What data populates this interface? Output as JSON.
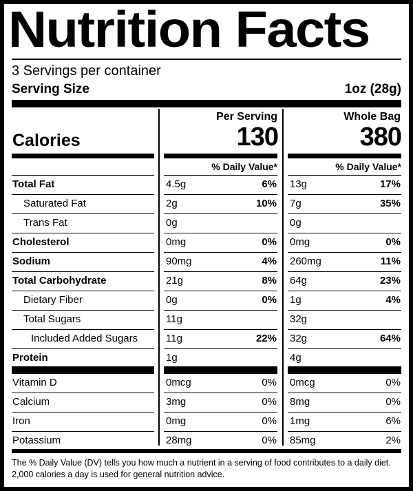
{
  "title": "Nutrition Facts",
  "servings_per_container": "3 Servings per container",
  "serving_size": {
    "label": "Serving Size",
    "value": "1oz (28g)"
  },
  "calories": {
    "label": "Calories",
    "per_serving_header": "Per Serving",
    "per_serving_value": "130",
    "whole_bag_header": "Whole Bag",
    "whole_bag_value": "380"
  },
  "daily_value_header": "% Daily Value*",
  "nutrients": [
    {
      "name": "Total Fat",
      "bold": true,
      "indent": 0,
      "serving_amount": "4.5g",
      "serving_dv": "6%",
      "bag_amount": "13g",
      "bag_dv": "17%"
    },
    {
      "name": "Saturated Fat",
      "bold": false,
      "indent": 1,
      "serving_amount": "2g",
      "serving_dv": "10%",
      "bag_amount": "7g",
      "bag_dv": "35%"
    },
    {
      "name": "Trans Fat",
      "bold": false,
      "indent": 1,
      "serving_amount": "0g",
      "serving_dv": "",
      "bag_amount": "0g",
      "bag_dv": ""
    },
    {
      "name": "Cholesterol",
      "bold": true,
      "indent": 0,
      "serving_amount": "0mg",
      "serving_dv": "0%",
      "bag_amount": "0mg",
      "bag_dv": "0%"
    },
    {
      "name": "Sodium",
      "bold": true,
      "indent": 0,
      "serving_amount": "90mg",
      "serving_dv": "4%",
      "bag_amount": "260mg",
      "bag_dv": "11%"
    },
    {
      "name": "Total Carbohydrate",
      "bold": true,
      "indent": 0,
      "serving_amount": "21g",
      "serving_dv": "8%",
      "bag_amount": "64g",
      "bag_dv": "23%"
    },
    {
      "name": "Dietary Fiber",
      "bold": false,
      "indent": 1,
      "serving_amount": "0g",
      "serving_dv": "0%",
      "bag_amount": "1g",
      "bag_dv": "4%"
    },
    {
      "name": "Total Sugars",
      "bold": false,
      "indent": 1,
      "serving_amount": "11g",
      "serving_dv": "",
      "bag_amount": "32g",
      "bag_dv": ""
    },
    {
      "name": "Included Added Sugars",
      "bold": false,
      "indent": 2,
      "serving_amount": "11g",
      "serving_dv": "22%",
      "bag_amount": "32g",
      "bag_dv": "64%"
    },
    {
      "name": "Protein",
      "bold": true,
      "indent": 0,
      "serving_amount": "1g",
      "serving_dv": "",
      "bag_amount": "4g",
      "bag_dv": ""
    }
  ],
  "vitamins": [
    {
      "name": "Vitamin D",
      "serving_amount": "0mcg",
      "serving_dv": "0%",
      "bag_amount": "0mcg",
      "bag_dv": "0%"
    },
    {
      "name": "Calcium",
      "serving_amount": "3mg",
      "serving_dv": "0%",
      "bag_amount": "8mg",
      "bag_dv": "0%"
    },
    {
      "name": "Iron",
      "serving_amount": "0mg",
      "serving_dv": "0%",
      "bag_amount": "1mg",
      "bag_dv": "6%"
    },
    {
      "name": "Potassium",
      "serving_amount": "28mg",
      "serving_dv": "0%",
      "bag_amount": "85mg",
      "bag_dv": "2%"
    }
  ],
  "footnote": "The % Daily Value (DV) tells you how much a nutrient in a serving of food contributes to a daily diet. 2,000 calories a day is used for general nutrition advice."
}
